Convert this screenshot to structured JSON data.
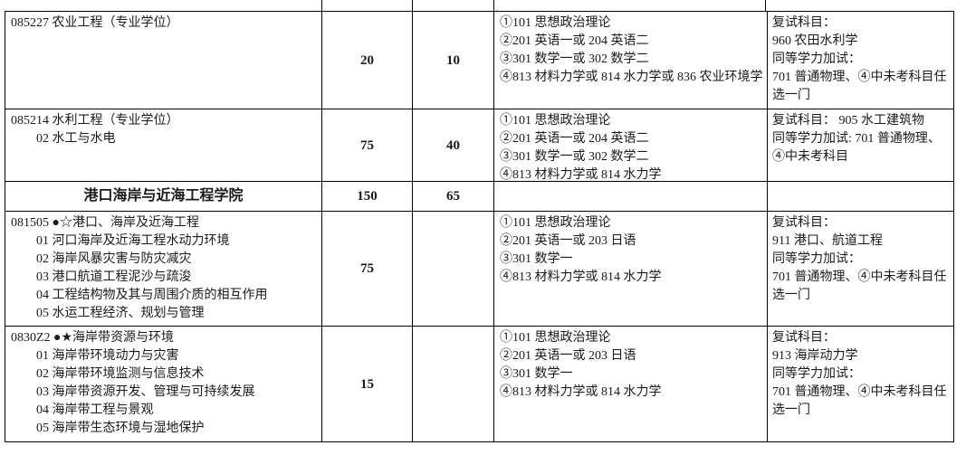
{
  "table": {
    "rows": [
      {
        "col1": "085227 农业工程（专业学位）",
        "quota1": "20",
        "quota2": "10",
        "exams": "①101 思想政治理论\n②201 英语一或 204 英语二\n③301 数学一或 302 数学二\n④813 材料力学或 814 水力学或 836 农业环境学",
        "retest": "复试科目：\n960 农田水利学\n同等学力加试：\n701 普通物理、④中未考科目任选一门"
      },
      {
        "col1": "085214 水利工程（专业学位）\n　　02 水工与水电",
        "quota1": "75",
        "quota2": "40",
        "exams": "①101 思想政治理论\n②201 英语一或 204 英语二\n③301 数学一或 302 数学二\n④813 材料力学或 814 水力学",
        "retest": "复试科目： 905 水工建筑物\n同等学力加试: 701 普通物理、④中未考科目"
      },
      {
        "col1": "港口海岸与近海工程学院",
        "quota1": "150",
        "quota2": "65",
        "exams": "",
        "retest": ""
      },
      {
        "col1": "081505 ●☆港口、海岸及近海工程\n　　01 河口海岸及近海工程水动力环境\n　　02 海岸风暴灾害与防灾减灾\n　　03 港口航道工程泥沙与疏浚\n　　04 工程结构物及其与周围介质的相互作用\n　　05 水运工程经济、规划与管理",
        "quota1": "75",
        "quota2": "",
        "exams": "①101 思想政治理论\n②201 英语一或 203 日语\n③301 数学一\n④813 材料力学或 814 水力学",
        "retest": "复试科目：\n911 港口、航道工程\n同等学力加试：\n701 普通物理、④中未考科目任选一门"
      },
      {
        "col1": "0830Z2 ●★海岸带资源与环境\n　　01 海岸带环境动力与灾害\n　　02 海岸带环境监测与信息技术\n　　03 海岸带资源开发、管理与可持续发展\n　　04 海岸带工程与景观\n　　05 海岸带生态环境与湿地保护",
        "quota1": "15",
        "quota2": "",
        "exams": "①101 思想政治理论\n②201 英语一或 203 日语\n③301 数学一\n④813 材料力学或 814 水力学",
        "retest": "复试科目：\n913 海岸动力学\n同等学力加试：\n701 普通物理、④中未考科目任选一门"
      }
    ]
  }
}
